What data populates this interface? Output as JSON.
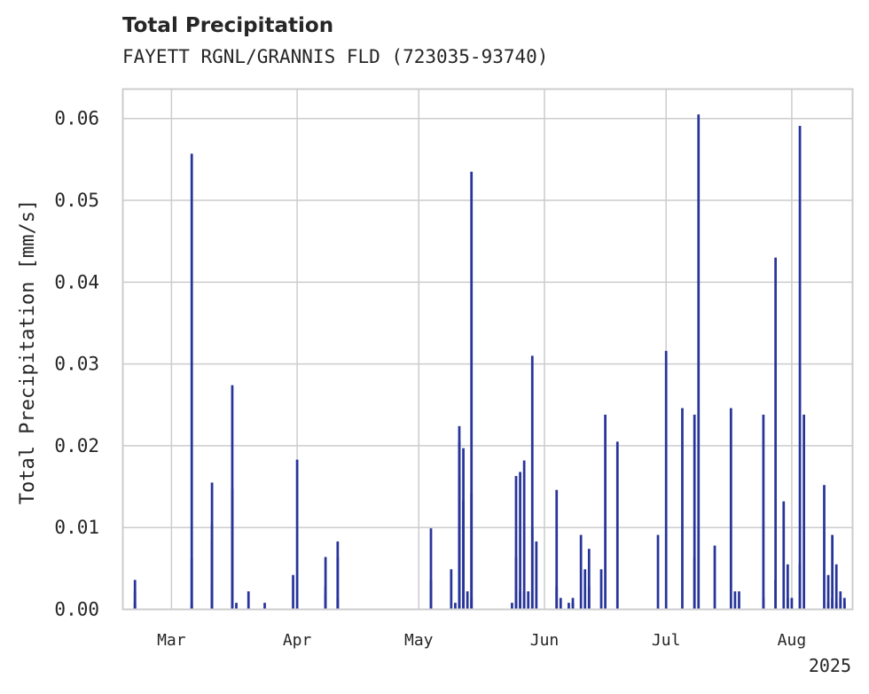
{
  "chart_data": {
    "type": "bar",
    "title": "Total Precipitation",
    "subtitle": "FAYETT RGNL/GRANNIS FLD (723035-93740)",
    "xlabel": "",
    "ylabel": "Total Precipitation [mm/s]",
    "year_label": "2025",
    "x_ticks": [
      {
        "date": "2025-03-01",
        "label": "Mar"
      },
      {
        "date": "2025-04-01",
        "label": "Apr"
      },
      {
        "date": "2025-05-01",
        "label": "May"
      },
      {
        "date": "2025-06-01",
        "label": "Jun"
      },
      {
        "date": "2025-07-01",
        "label": "Jul"
      },
      {
        "date": "2025-08-01",
        "label": "Aug"
      }
    ],
    "y_ticks": [
      {
        "value": 0.0,
        "label": "0.00"
      },
      {
        "value": 0.01,
        "label": "0.01"
      },
      {
        "value": 0.02,
        "label": "0.02"
      },
      {
        "value": 0.03,
        "label": "0.03"
      },
      {
        "value": 0.04,
        "label": "0.04"
      },
      {
        "value": 0.05,
        "label": "0.05"
      },
      {
        "value": 0.06,
        "label": "0.06"
      }
    ],
    "xlim": [
      "2025-02-17",
      "2025-08-16"
    ],
    "ylim": [
      0,
      0.0636
    ],
    "grid": true,
    "color": "#27349a",
    "series": [
      {
        "x": [
          "2025-02-20",
          "2025-02-20",
          "2025-02-20",
          "2025-03-06",
          "2025-03-06",
          "2025-03-06",
          "2025-03-11",
          "2025-03-11",
          "2025-03-11",
          "2025-03-11",
          "2025-03-11",
          "2025-03-16",
          "2025-03-16",
          "2025-03-17",
          "2025-03-20",
          "2025-03-24",
          "2025-03-31",
          "2025-04-01",
          "2025-04-08",
          "2025-04-08",
          "2025-04-08",
          "2025-04-11",
          "2025-04-11",
          "2025-04-11",
          "2025-05-04",
          "2025-05-04",
          "2025-05-09",
          "2025-05-10",
          "2025-05-11",
          "2025-05-11",
          "2025-05-11",
          "2025-05-12",
          "2025-05-12",
          "2025-05-13",
          "2025-05-14",
          "2025-05-14",
          "2025-05-14",
          "2025-05-24",
          "2025-05-25",
          "2025-05-25",
          "2025-05-26",
          "2025-05-26",
          "2025-05-27",
          "2025-05-27",
          "2025-05-28",
          "2025-05-29",
          "2025-05-29",
          "2025-05-30",
          "2025-06-04",
          "2025-06-04",
          "2025-06-05",
          "2025-06-07",
          "2025-06-08",
          "2025-06-08",
          "2025-06-10",
          "2025-06-11",
          "2025-06-12",
          "2025-06-12",
          "2025-06-15",
          "2025-06-16",
          "2025-06-19",
          "2025-06-29",
          "2025-07-01",
          "2025-07-05",
          "2025-07-08",
          "2025-07-08",
          "2025-07-09",
          "2025-07-13",
          "2025-07-17",
          "2025-07-18",
          "2025-07-19",
          "2025-07-25",
          "2025-07-25",
          "2025-07-28",
          "2025-07-28",
          "2025-07-30",
          "2025-07-31",
          "2025-07-31",
          "2025-08-01",
          "2025-08-03",
          "2025-08-03",
          "2025-08-04",
          "2025-08-09",
          "2025-08-10",
          "2025-08-10",
          "2025-08-11",
          "2025-08-11",
          "2025-08-12",
          "2025-08-12",
          "2025-08-13",
          "2025-08-13",
          "2025-08-14",
          "2025-08-14"
        ],
        "values": [
          0.0036,
          0.0022,
          0.0008,
          0.0006,
          0.0557,
          0.0062,
          0.0105,
          0.0155,
          0.0085,
          0.0028,
          0.0008,
          0.0274,
          0.0147,
          0.0008,
          0.0022,
          0.0008,
          0.0042,
          0.0183,
          0.0064,
          0.0028,
          0.0018,
          0.0083,
          0.0064,
          0.0014,
          0.0099,
          0.0036,
          0.0049,
          0.0008,
          0.0205,
          0.0162,
          0.0224,
          0.0197,
          0.0133,
          0.0022,
          0.0535,
          0.0142,
          0.0014,
          0.0008,
          0.0163,
          0.0064,
          0.0168,
          0.0022,
          0.0182,
          0.0022,
          0.0022,
          0.0099,
          0.031,
          0.0083,
          0.0028,
          0.0146,
          0.0014,
          0.0008,
          0.0014,
          0.0008,
          0.0091,
          0.0049,
          0.0074,
          0.0028,
          0.0049,
          0.0238,
          0.0205,
          0.0091,
          0.0316,
          0.0246,
          0.0064,
          0.0238,
          0.0605,
          0.0078,
          0.0246,
          0.0022,
          0.0022,
          0.0238,
          0.0014,
          0.0036,
          0.043,
          0.0132,
          0.0014,
          0.0055,
          0.0014,
          0.0055,
          0.0591,
          0.0238,
          0.0152,
          0.0008,
          0.0042,
          0.0014,
          0.0091,
          0.0008,
          0.0055,
          0.0014,
          0.0022,
          0.0008,
          0.0014
        ]
      }
    ]
  }
}
